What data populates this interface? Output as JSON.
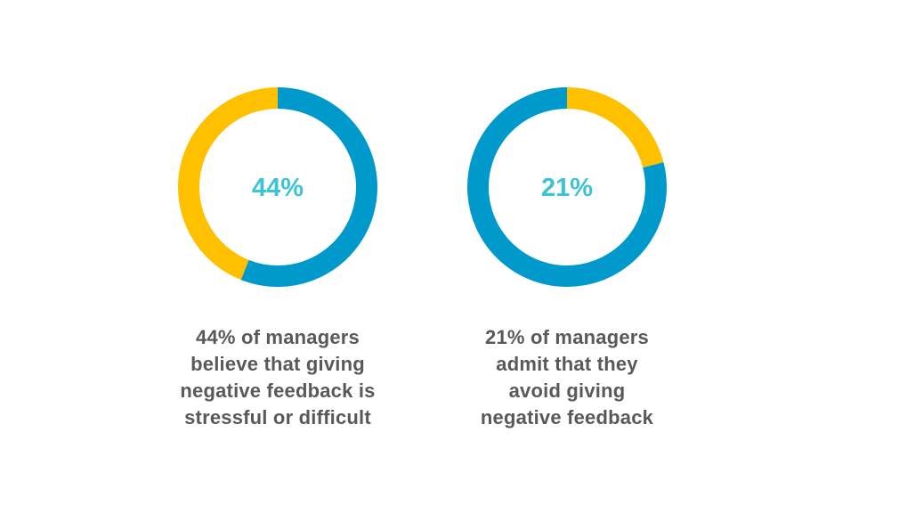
{
  "colors": {
    "highlight": "#FFC000",
    "remainder": "#0099CC",
    "center_text": "#3CC3D6",
    "caption_text": "#595959"
  },
  "chart_data": [
    {
      "type": "pie",
      "variant": "donut",
      "center_label": "44%",
      "slices": [
        {
          "label": "highlight",
          "value": 44
        },
        {
          "label": "remainder",
          "value": 56
        }
      ],
      "caption": "44% of managers\nbelieve that giving\nnegative feedback is\nstressful or difficult"
    },
    {
      "type": "pie",
      "variant": "donut",
      "center_label": "21%",
      "slices": [
        {
          "label": "highlight",
          "value": 21
        },
        {
          "label": "remainder",
          "value": 79
        }
      ],
      "caption": "21% of managers\nadmit that they\navoid giving\nnegative feedback"
    }
  ]
}
